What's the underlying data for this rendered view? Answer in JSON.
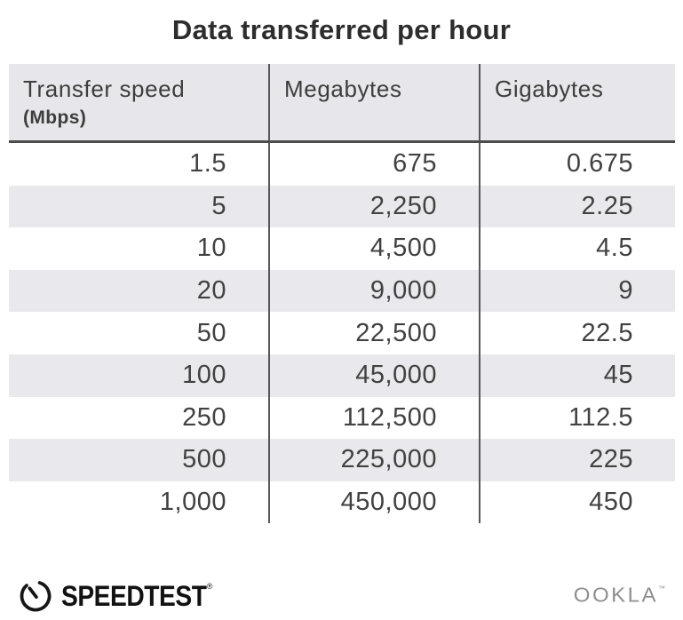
{
  "title": "Data transferred per hour",
  "table": {
    "columns": [
      {
        "label": "Transfer speed",
        "sublabel": "(Mbps)"
      },
      {
        "label": "Megabytes",
        "sublabel": ""
      },
      {
        "label": "Gigabytes",
        "sublabel": ""
      }
    ],
    "rows": [
      [
        "1.5",
        "675",
        "0.675"
      ],
      [
        "5",
        "2,250",
        "2.25"
      ],
      [
        "10",
        "4,500",
        "4.5"
      ],
      [
        "20",
        "9,000",
        "9"
      ],
      [
        "50",
        "22,500",
        "22.5"
      ],
      [
        "100",
        "45,000",
        "45"
      ],
      [
        "250",
        "112,500",
        "112.5"
      ],
      [
        "500",
        "225,000",
        "225"
      ],
      [
        "1,000",
        "450,000",
        "450"
      ]
    ]
  },
  "chart_data": {
    "type": "table",
    "title": "Data transferred per hour",
    "columns": [
      "Transfer speed (Mbps)",
      "Megabytes",
      "Gigabytes"
    ],
    "rows": [
      [
        1.5,
        675,
        0.675
      ],
      [
        5,
        2250,
        2.25
      ],
      [
        10,
        4500,
        4.5
      ],
      [
        20,
        9000,
        9
      ],
      [
        50,
        22500,
        22.5
      ],
      [
        100,
        45000,
        45
      ],
      [
        250,
        112500,
        112.5
      ],
      [
        500,
        225000,
        225
      ],
      [
        1000,
        450000,
        450
      ]
    ]
  },
  "footer": {
    "speedtest_label": "SPEEDTEST",
    "speedtest_mark": "®",
    "ookla_label": "OOKLA",
    "ookla_mark": "™"
  },
  "colors": {
    "header_bg": "#e7e7eb",
    "stripe_bg": "#e9e9ed",
    "divider_line": "#57575a",
    "header_rule": "#4c4c4e",
    "title_text": "#2d2d2d",
    "cell_text": "#414141",
    "speedtest_black": "#121212",
    "ookla_gray": "#8e8e90"
  }
}
